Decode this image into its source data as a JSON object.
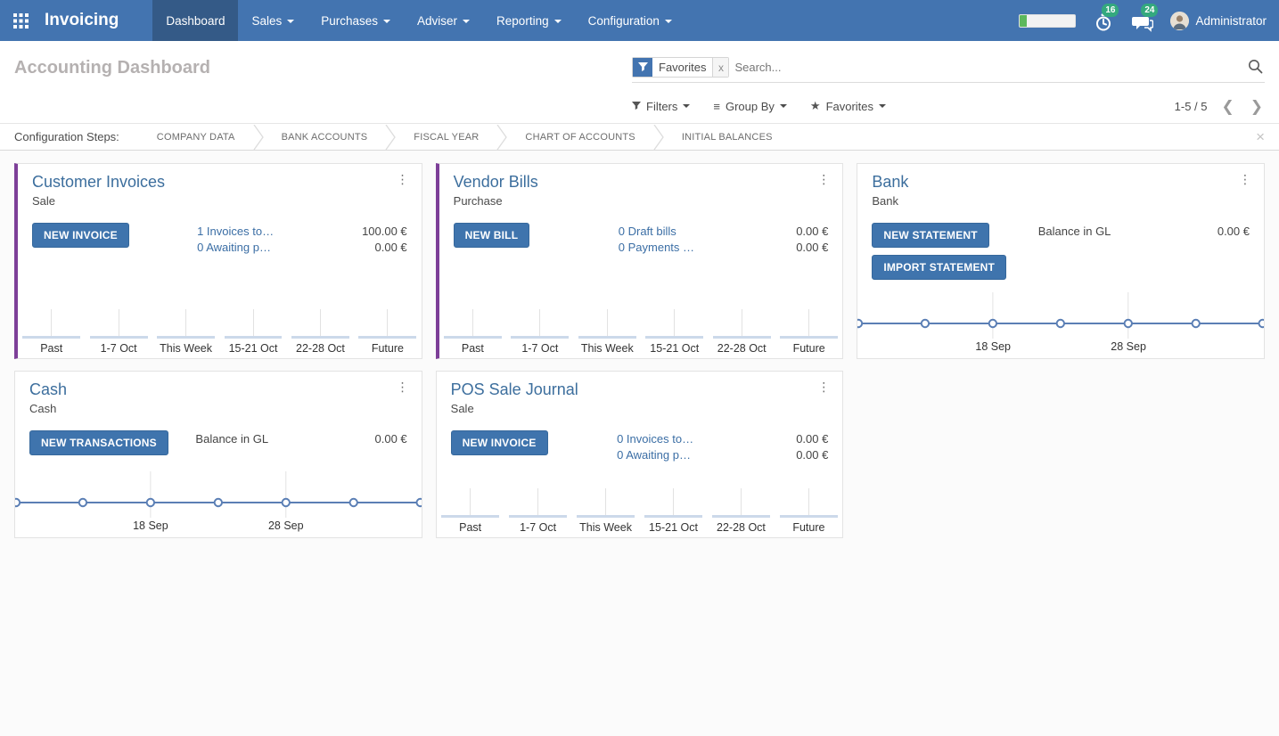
{
  "navbar": {
    "brand": "Invoicing",
    "items": [
      {
        "label": "Dashboard",
        "active": true,
        "dropdown": false
      },
      {
        "label": "Sales",
        "active": false,
        "dropdown": true
      },
      {
        "label": "Purchases",
        "active": false,
        "dropdown": true
      },
      {
        "label": "Adviser",
        "active": false,
        "dropdown": true
      },
      {
        "label": "Reporting",
        "active": false,
        "dropdown": true
      },
      {
        "label": "Configuration",
        "active": false,
        "dropdown": true
      }
    ],
    "activity_badge": "16",
    "message_badge": "24",
    "user_name": "Administrator",
    "progress_percent": 12
  },
  "control_panel": {
    "title": "Accounting Dashboard",
    "search": {
      "facet_label": "Favorites",
      "facet_remove": "x",
      "placeholder": "Search..."
    },
    "filters_label": "Filters",
    "group_by_label": "Group By",
    "favorites_label": "Favorites",
    "pager_range": "1-5 / 5"
  },
  "config_steps": {
    "label": "Configuration Steps:",
    "steps": [
      "COMPANY DATA",
      "BANK ACCOUNTS",
      "FISCAL YEAR",
      "CHART OF ACCOUNTS",
      "INITIAL BALANCES"
    ]
  },
  "colors": {
    "navbar_bg": "#4374b0",
    "navbar_active_bg": "#345a87",
    "primary_button_bg": "#3f74ad",
    "link_blue": "#3b6ea5",
    "card_title_blue": "#3c6e9d",
    "accent_purple": "#7d3f98",
    "badge_green": "#34a97e",
    "progress_green": "#5cb85c",
    "chart_line_blue": "#5b7fb5"
  },
  "cards": [
    {
      "title": "Customer Invoices",
      "subtitle": "Sale",
      "accent_left": true,
      "row": 1,
      "buttons": [
        "NEW INVOICE"
      ],
      "rows": [
        {
          "link": true,
          "text": "1 Invoices to…",
          "amount": "100.00 €"
        },
        {
          "link": true,
          "text": "0 Awaiting p…",
          "amount": "0.00 €"
        }
      ],
      "chart": {
        "type": "bar",
        "categories": [
          "Past",
          "1-7 Oct",
          "This Week",
          "15-21 Oct",
          "22-28 Oct",
          "Future"
        ],
        "values": [
          0,
          0,
          0,
          0,
          0,
          0
        ]
      }
    },
    {
      "title": "Vendor Bills",
      "subtitle": "Purchase",
      "accent_left": true,
      "row": 1,
      "buttons": [
        "NEW BILL"
      ],
      "rows": [
        {
          "link": true,
          "text": "0 Draft bills",
          "amount": "0.00 €"
        },
        {
          "link": true,
          "text": "0 Payments …",
          "amount": "0.00 €"
        }
      ],
      "chart": {
        "type": "bar",
        "categories": [
          "Past",
          "1-7 Oct",
          "This Week",
          "15-21 Oct",
          "22-28 Oct",
          "Future"
        ],
        "values": [
          0,
          0,
          0,
          0,
          0,
          0
        ]
      }
    },
    {
      "title": "Bank",
      "subtitle": "Bank",
      "accent_left": false,
      "row": 1,
      "buttons": [
        "NEW STATEMENT",
        "IMPORT STATEMENT"
      ],
      "rows": [
        {
          "link": false,
          "text": "Balance in GL",
          "amount": "0.00 €"
        }
      ],
      "chart": {
        "type": "line",
        "values": [
          0,
          0,
          0,
          0,
          0,
          0,
          0
        ],
        "x_ticks": [
          {
            "index": 2,
            "label": "18 Sep"
          },
          {
            "index": 4,
            "label": "28 Sep"
          }
        ]
      }
    },
    {
      "title": "Cash",
      "subtitle": "Cash",
      "accent_left": false,
      "row": 2,
      "buttons": [
        "NEW TRANSACTIONS"
      ],
      "rows": [
        {
          "link": false,
          "text": "Balance in GL",
          "amount": "0.00 €"
        }
      ],
      "chart": {
        "type": "line",
        "values": [
          0,
          0,
          0,
          0,
          0,
          0,
          0
        ],
        "x_ticks": [
          {
            "index": 2,
            "label": "18 Sep"
          },
          {
            "index": 4,
            "label": "28 Sep"
          }
        ]
      }
    },
    {
      "title": "POS Sale Journal",
      "subtitle": "Sale",
      "accent_left": false,
      "row": 2,
      "buttons": [
        "NEW INVOICE"
      ],
      "rows": [
        {
          "link": true,
          "text": "0 Invoices to…",
          "amount": "0.00 €"
        },
        {
          "link": true,
          "text": "0 Awaiting p…",
          "amount": "0.00 €"
        }
      ],
      "chart": {
        "type": "bar",
        "categories": [
          "Past",
          "1-7 Oct",
          "This Week",
          "15-21 Oct",
          "22-28 Oct",
          "Future"
        ],
        "values": [
          0,
          0,
          0,
          0,
          0,
          0
        ]
      }
    }
  ]
}
